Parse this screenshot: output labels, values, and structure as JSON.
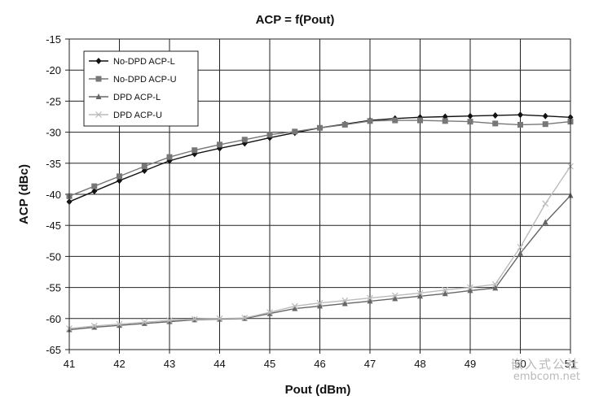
{
  "chart_data": {
    "type": "line",
    "title": "ACP = f(Pout)",
    "xlabel": "Pout (dBm)",
    "ylabel": "ACP (dBc)",
    "xlim": [
      41,
      51
    ],
    "ylim": [
      -65,
      -15
    ],
    "xticks": [
      41,
      42,
      43,
      44,
      45,
      46,
      47,
      48,
      49,
      50,
      51
    ],
    "yticks": [
      -15,
      -20,
      -25,
      -30,
      -35,
      -40,
      -45,
      -50,
      -55,
      -60,
      -65
    ],
    "grid": true,
    "legend_position": "top-left",
    "series": [
      {
        "name": "No-DPD ACP-L",
        "color": "#111111",
        "marker": "diamond",
        "points": [
          [
            41,
            -41.2
          ],
          [
            41.5,
            -39.5
          ],
          [
            42,
            -37.8
          ],
          [
            42.5,
            -36.2
          ],
          [
            43,
            -34.6
          ],
          [
            43.5,
            -33.5
          ],
          [
            44,
            -32.6
          ],
          [
            44.5,
            -31.8
          ],
          [
            45,
            -30.9
          ],
          [
            45.5,
            -30.1
          ],
          [
            46,
            -29.3
          ],
          [
            46.5,
            -28.7
          ],
          [
            47,
            -28.1
          ],
          [
            47.5,
            -27.8
          ],
          [
            48,
            -27.6
          ],
          [
            48.5,
            -27.5
          ],
          [
            49,
            -27.4
          ],
          [
            49.5,
            -27.3
          ],
          [
            50,
            -27.2
          ],
          [
            50.5,
            -27.4
          ],
          [
            51,
            -27.6
          ]
        ]
      },
      {
        "name": "No-DPD ACP-U",
        "color": "#777777",
        "marker": "square",
        "points": [
          [
            41,
            -40.3
          ],
          [
            41.5,
            -38.7
          ],
          [
            42,
            -37.1
          ],
          [
            42.5,
            -35.5
          ],
          [
            43,
            -34.0
          ],
          [
            43.5,
            -32.9
          ],
          [
            44,
            -32.0
          ],
          [
            44.5,
            -31.2
          ],
          [
            45,
            -30.4
          ],
          [
            45.5,
            -29.9
          ],
          [
            46,
            -29.3
          ],
          [
            46.5,
            -28.8
          ],
          [
            47,
            -28.2
          ],
          [
            47.5,
            -28.1
          ],
          [
            48,
            -28.1
          ],
          [
            48.5,
            -28.2
          ],
          [
            49,
            -28.3
          ],
          [
            49.5,
            -28.6
          ],
          [
            50,
            -28.8
          ],
          [
            50.5,
            -28.7
          ],
          [
            51,
            -28.3
          ]
        ]
      },
      {
        "name": "DPD ACP-L",
        "color": "#666666",
        "marker": "triangle",
        "points": [
          [
            41,
            -61.8
          ],
          [
            41.5,
            -61.4
          ],
          [
            42,
            -61.1
          ],
          [
            42.5,
            -60.8
          ],
          [
            43,
            -60.5
          ],
          [
            43.5,
            -60.2
          ],
          [
            44,
            -60.1
          ],
          [
            44.5,
            -60.0
          ],
          [
            45,
            -59.2
          ],
          [
            45.5,
            -58.4
          ],
          [
            46,
            -58.0
          ],
          [
            46.5,
            -57.6
          ],
          [
            47,
            -57.2
          ],
          [
            47.5,
            -56.8
          ],
          [
            48,
            -56.4
          ],
          [
            48.5,
            -56.0
          ],
          [
            49,
            -55.5
          ],
          [
            49.5,
            -55.1
          ],
          [
            50,
            -49.5
          ],
          [
            50.5,
            -44.5
          ],
          [
            51,
            -40.2
          ]
        ]
      },
      {
        "name": "DPD ACP-U",
        "color": "#bbbbbb",
        "marker": "cross",
        "points": [
          [
            41,
            -61.6
          ],
          [
            41.5,
            -61.2
          ],
          [
            42,
            -60.9
          ],
          [
            42.5,
            -60.6
          ],
          [
            43,
            -60.3
          ],
          [
            43.5,
            -60.1
          ],
          [
            44,
            -60.0
          ],
          [
            44.5,
            -59.9
          ],
          [
            45,
            -59.0
          ],
          [
            45.5,
            -58.0
          ],
          [
            46,
            -57.5
          ],
          [
            46.5,
            -57.1
          ],
          [
            47,
            -56.7
          ],
          [
            47.5,
            -56.3
          ],
          [
            48,
            -55.9
          ],
          [
            48.5,
            -55.4
          ],
          [
            49,
            -55.0
          ],
          [
            49.5,
            -54.5
          ],
          [
            50,
            -48.5
          ],
          [
            50.5,
            -41.5
          ],
          [
            51,
            -35.5
          ]
        ]
      }
    ]
  },
  "watermark": {
    "line1": "嵌入式公社",
    "line2": "embcom.net"
  }
}
